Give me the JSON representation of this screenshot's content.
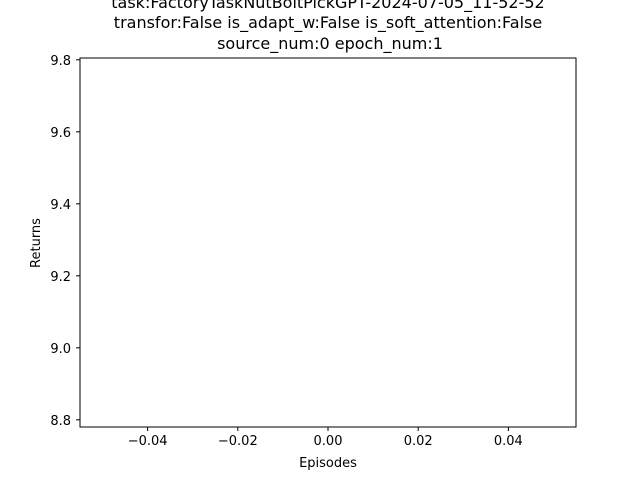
{
  "chart_data": {
    "type": "line",
    "title_lines": [
      "task:FactoryTaskNutBoltPickGPT-2024-07-05_11-52-52",
      "transfor:False  is_adapt_w:False  is_soft_attention:False",
      "source_num:0   epoch_num:1"
    ],
    "xlabel": "Episodes",
    "ylabel": "Returns",
    "xlim": [
      -0.055,
      0.055
    ],
    "ylim": [
      8.78,
      9.805
    ],
    "xticks": [
      -0.04,
      -0.02,
      0.0,
      0.02,
      0.04
    ],
    "xtick_labels": [
      "−0.04",
      "−0.02",
      "0.00",
      "0.02",
      "0.04"
    ],
    "yticks": [
      8.8,
      9.0,
      9.2,
      9.4,
      9.6,
      9.8
    ],
    "ytick_labels": [
      "8.8",
      "9.0",
      "9.2",
      "9.4",
      "9.6",
      "9.8"
    ],
    "grid": false,
    "series": [
      {
        "x": [],
        "y": []
      }
    ]
  }
}
